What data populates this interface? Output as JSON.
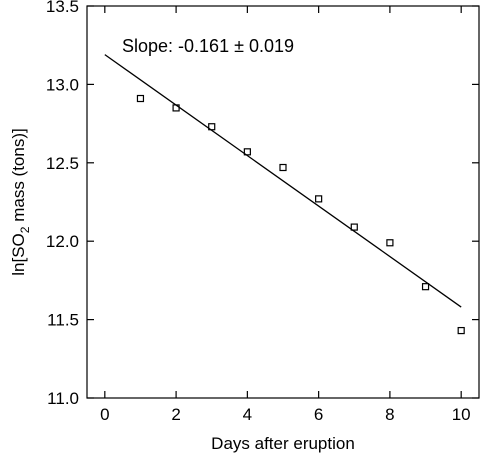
{
  "chart_data": {
    "type": "scatter",
    "title": "",
    "xlabel": "Days after eruption",
    "ylabel": {
      "prefix": "ln[SO",
      "subscript": "2",
      "suffix": " mass (tons)]"
    },
    "xlim": [
      -0.5,
      10.5
    ],
    "ylim": [
      11.0,
      13.5
    ],
    "xticks": [
      0,
      2,
      4,
      6,
      8,
      10
    ],
    "xtick_labels": [
      "0",
      "2",
      "4",
      "6",
      "8",
      "10"
    ],
    "yticks": [
      11.0,
      11.5,
      12.0,
      12.5,
      13.0,
      13.5
    ],
    "ytick_labels": [
      "11.0",
      "11.5",
      "12.0",
      "12.5",
      "13.0",
      "13.5"
    ],
    "grid": false,
    "series": [
      {
        "marker": "open-square",
        "x": [
          1,
          2,
          3,
          4,
          5,
          6,
          7,
          8,
          9,
          10
        ],
        "y": [
          12.91,
          12.85,
          12.73,
          12.57,
          12.47,
          12.27,
          12.09,
          11.99,
          11.71,
          11.43
        ]
      }
    ],
    "fit_line": {
      "x": [
        0,
        10
      ],
      "y": [
        13.19,
        11.58
      ]
    },
    "annotation": "Slope: -0.161 ± 0.019",
    "colors": {
      "foreground": "#000000",
      "background": "#ffffff"
    }
  }
}
